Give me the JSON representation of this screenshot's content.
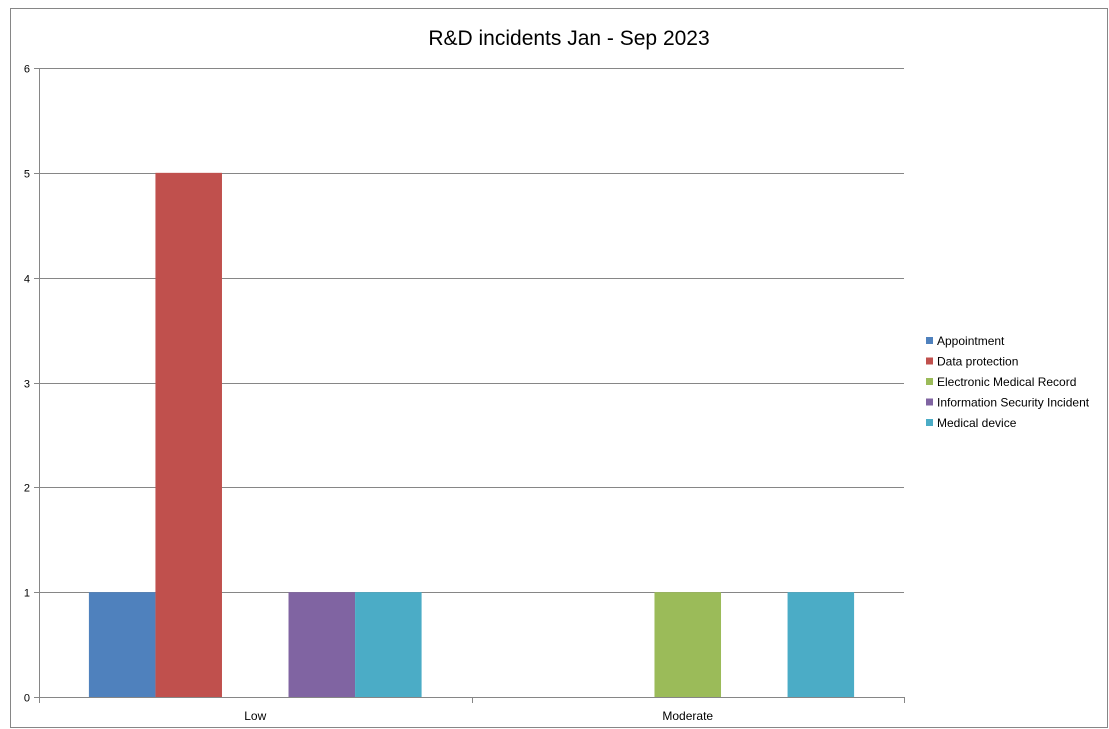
{
  "chart_data": {
    "type": "bar",
    "title": "R&D incidents Jan - Sep 2023",
    "xlabel": "",
    "ylabel": "",
    "categories": [
      "Low",
      "Moderate"
    ],
    "series": [
      {
        "name": "Appointment",
        "color": "#4F81BD",
        "values": [
          1,
          0
        ]
      },
      {
        "name": "Data protection",
        "color": "#C0504D",
        "values": [
          5,
          0
        ]
      },
      {
        "name": "Electronic Medical Record",
        "color": "#9BBB59",
        "values": [
          0,
          1
        ]
      },
      {
        "name": "Information Security Incident",
        "color": "#8064A2",
        "values": [
          1,
          0
        ]
      },
      {
        "name": "Medical device",
        "color": "#4BACC6",
        "values": [
          1,
          1
        ]
      }
    ],
    "ylim": [
      0,
      6
    ],
    "yticks": [
      "0",
      "1",
      "2",
      "3",
      "4",
      "5",
      "6"
    ],
    "grid": true,
    "legend": "right",
    "colors": {
      "gridline": "#868686",
      "axis": "#868686",
      "frame": "#868686"
    }
  }
}
